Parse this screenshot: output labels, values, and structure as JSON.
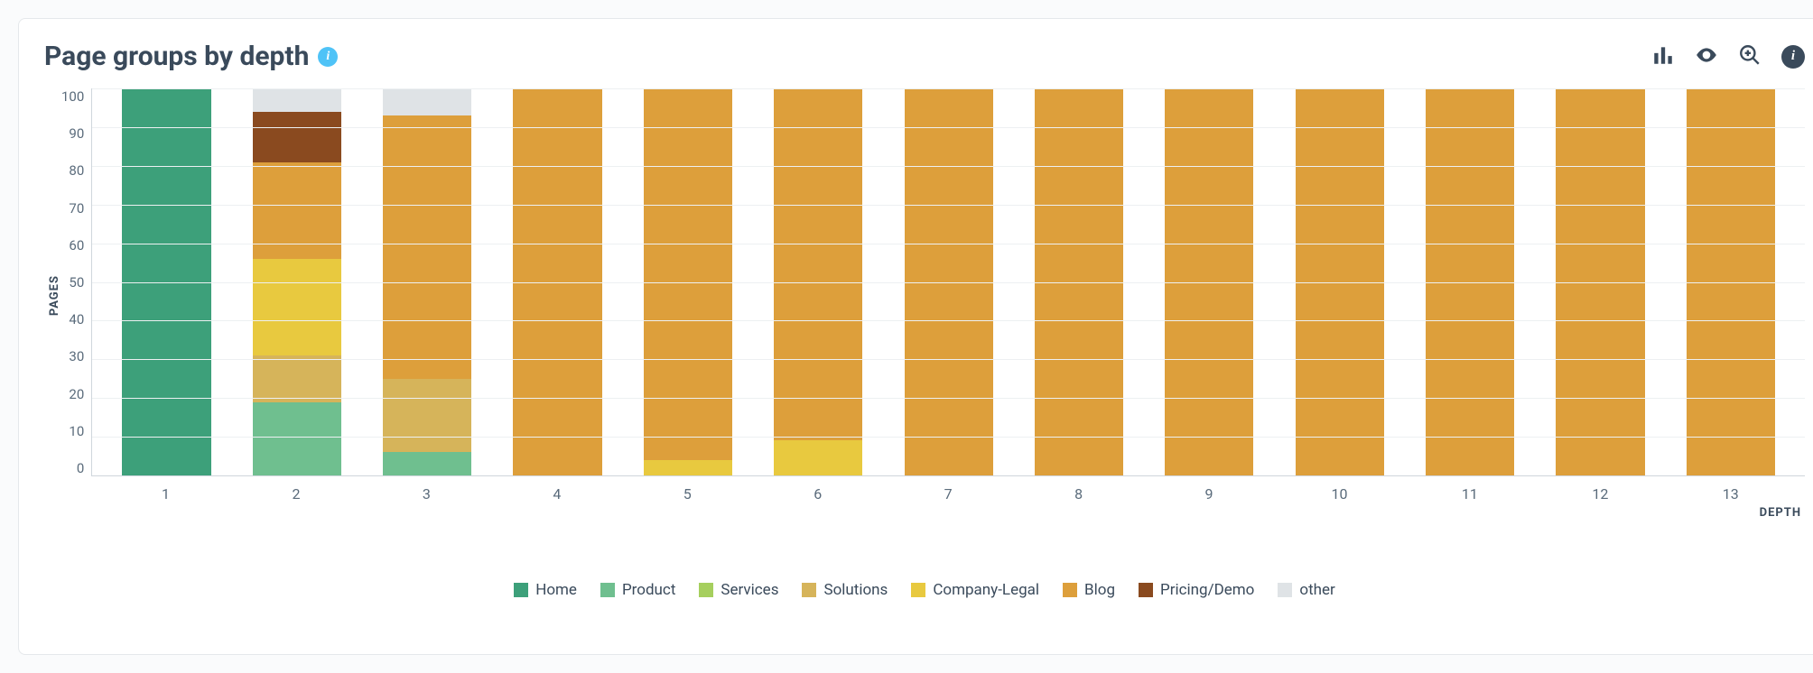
{
  "card": {
    "title": "Page groups by depth",
    "background_color": "#ffffff",
    "border_color": "#e5e8eb"
  },
  "chart": {
    "type": "stacked-bar",
    "y_axis": {
      "label": "PAGES",
      "min": 0,
      "max": 100,
      "tick_step": 10,
      "ticks": [
        0,
        10,
        20,
        30,
        40,
        50,
        60,
        70,
        80,
        90,
        100
      ],
      "grid_color": "#edf0f2",
      "axis_color": "#cfd6dc",
      "label_fontsize": 13,
      "tick_fontsize": 15,
      "tick_color": "#5a6b7b"
    },
    "x_axis": {
      "label": "DEPTH",
      "categories": [
        "1",
        "2",
        "3",
        "4",
        "5",
        "6",
        "7",
        "8",
        "9",
        "10",
        "11",
        "12",
        "13"
      ],
      "label_fontsize": 13,
      "tick_fontsize": 16,
      "tick_color": "#5a6b7b"
    },
    "series": [
      {
        "key": "home",
        "label": "Home",
        "color": "#3da07a"
      },
      {
        "key": "product",
        "label": "Product",
        "color": "#6fbf8f"
      },
      {
        "key": "services",
        "label": "Services",
        "color": "#a6cf5e"
      },
      {
        "key": "solutions",
        "label": "Solutions",
        "color": "#d6b45a"
      },
      {
        "key": "company_legal",
        "label": "Company-Legal",
        "color": "#e8c93f"
      },
      {
        "key": "blog",
        "label": "Blog",
        "color": "#dd9f3b"
      },
      {
        "key": "pricing_demo",
        "label": "Pricing/Demo",
        "color": "#8a4a1f"
      },
      {
        "key": "other",
        "label": "other",
        "color": "#dfe3e6"
      }
    ],
    "stacks": [
      {
        "x": "1",
        "values": {
          "home": 100
        }
      },
      {
        "x": "2",
        "values": {
          "product": 19,
          "solutions": 12,
          "company_legal": 25,
          "blog": 25,
          "pricing_demo": 13,
          "other": 6
        }
      },
      {
        "x": "3",
        "values": {
          "product": 6,
          "solutions": 19,
          "blog": 68,
          "other": 7
        }
      },
      {
        "x": "4",
        "values": {
          "blog": 100
        }
      },
      {
        "x": "5",
        "values": {
          "company_legal": 4,
          "blog": 96
        }
      },
      {
        "x": "6",
        "values": {
          "company_legal": 9,
          "blog": 91
        }
      },
      {
        "x": "7",
        "values": {
          "blog": 100
        }
      },
      {
        "x": "8",
        "values": {
          "blog": 100
        }
      },
      {
        "x": "9",
        "values": {
          "blog": 100
        }
      },
      {
        "x": "10",
        "values": {
          "blog": 100
        }
      },
      {
        "x": "11",
        "values": {
          "blog": 100
        }
      },
      {
        "x": "12",
        "values": {
          "blog": 100
        }
      },
      {
        "x": "13",
        "values": {
          "blog": 100
        }
      }
    ],
    "bar_width_ratio": 0.68,
    "legend_fontsize": 17
  },
  "toolbar": {
    "chart_type_icon": "bar-chart-icon",
    "visibility_icon": "eye-icon",
    "zoom_icon": "zoom-in-icon",
    "info_icon": "info-circle-icon"
  }
}
